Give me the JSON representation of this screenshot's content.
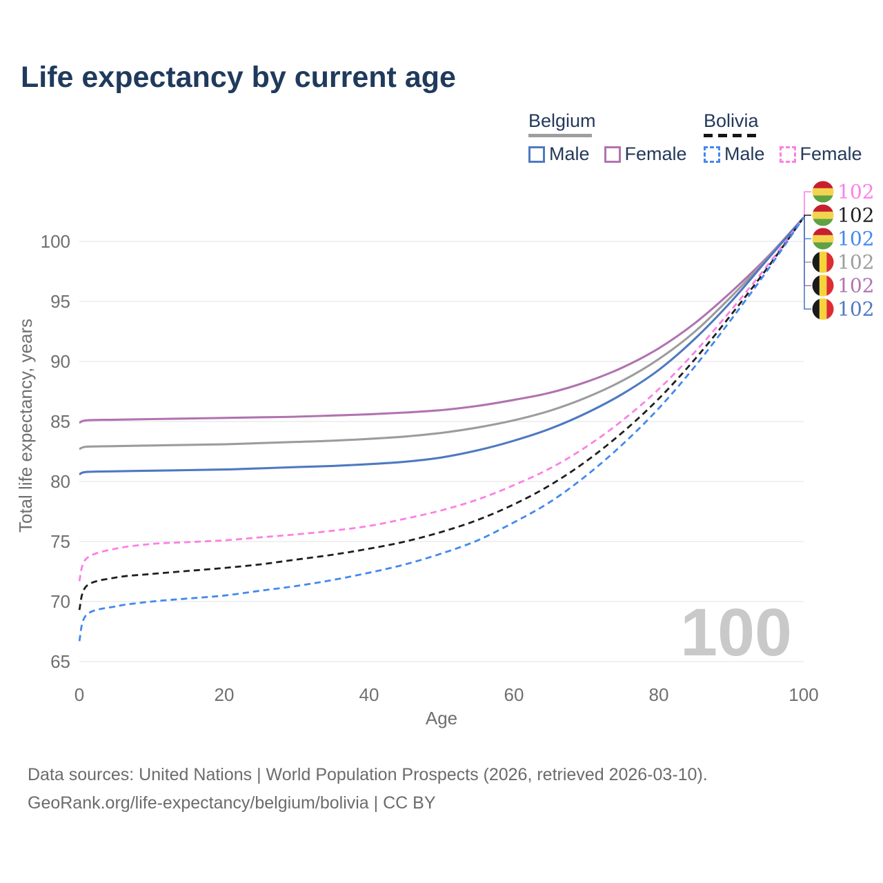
{
  "title": "Life expectancy by current age",
  "legend": {
    "groups": [
      {
        "label": "Belgium",
        "underline_style": "solid",
        "underline_color": "#9e9e9e",
        "items": [
          {
            "label": "Male",
            "color": "#4e79c1",
            "dashed": false
          },
          {
            "label": "Female",
            "color": "#b173af",
            "dashed": false
          }
        ]
      },
      {
        "label": "Bolivia",
        "underline_style": "dashed",
        "underline_color": "#151515",
        "items": [
          {
            "label": "Male",
            "color": "#4289ef",
            "dashed": true
          },
          {
            "label": "Female",
            "color": "#fb80e3",
            "dashed": true
          }
        ]
      }
    ]
  },
  "chart_data": {
    "type": "line",
    "title": "Life expectancy by current age",
    "xlabel": "Age",
    "ylabel": "Total life expectancy, years",
    "xlim": [
      0,
      100
    ],
    "ylim": [
      65,
      102
    ],
    "xticks": [
      0,
      20,
      40,
      60,
      80,
      100
    ],
    "yticks": [
      65,
      70,
      75,
      80,
      85,
      90,
      95,
      100
    ],
    "grid": "horizontal",
    "legend_position": "top-right",
    "x": [
      0,
      1,
      5,
      10,
      15,
      20,
      25,
      30,
      35,
      40,
      45,
      50,
      55,
      60,
      65,
      70,
      75,
      80,
      85,
      90,
      95,
      100
    ],
    "series": [
      {
        "name": "Belgium Female",
        "country": "Belgium",
        "sex": "female",
        "color": "#b173af",
        "dashed": false,
        "row": 4,
        "flag": "belgium",
        "end_label": "102",
        "values": [
          84.9,
          85.1,
          85.15,
          85.2,
          85.25,
          85.3,
          85.35,
          85.4,
          85.5,
          85.6,
          85.75,
          85.95,
          86.3,
          86.8,
          87.4,
          88.3,
          89.5,
          91.1,
          93.2,
          95.8,
          98.7,
          102
        ]
      },
      {
        "name": "Belgium Both sexes",
        "country": "Belgium",
        "sex": "both",
        "color": "#9c9c9c",
        "dashed": false,
        "row": 3,
        "flag": "belgium",
        "end_label": "102",
        "values": [
          82.7,
          82.9,
          82.95,
          83.0,
          83.05,
          83.1,
          83.2,
          83.3,
          83.4,
          83.55,
          83.75,
          84.05,
          84.5,
          85.1,
          85.9,
          87.0,
          88.4,
          90.2,
          92.5,
          95.4,
          98.6,
          102
        ]
      },
      {
        "name": "Belgium Male",
        "country": "Belgium",
        "sex": "male",
        "color": "#4e79c1",
        "dashed": false,
        "row": 5,
        "flag": "belgium",
        "end_label": "102",
        "values": [
          80.6,
          80.8,
          80.85,
          80.9,
          80.95,
          81.0,
          81.1,
          81.2,
          81.3,
          81.45,
          81.65,
          82.0,
          82.6,
          83.4,
          84.4,
          85.7,
          87.3,
          89.3,
          91.9,
          95.0,
          98.5,
          102
        ]
      },
      {
        "name": "Bolivia Female",
        "country": "Bolivia",
        "sex": "female",
        "color": "#fb80e3",
        "dashed": true,
        "row": 0,
        "flag": "bolivia",
        "end_label": "102",
        "values": [
          71.7,
          73.6,
          74.4,
          74.8,
          74.95,
          75.1,
          75.35,
          75.6,
          75.9,
          76.3,
          76.9,
          77.6,
          78.5,
          79.7,
          81.1,
          82.9,
          85.1,
          87.7,
          90.8,
          94.3,
          98.0,
          102
        ]
      },
      {
        "name": "Bolivia Both sexes",
        "country": "Bolivia",
        "sex": "both",
        "color": "#1f1f1f",
        "dashed": true,
        "row": 1,
        "flag": "bolivia",
        "end_label": "102",
        "values": [
          69.3,
          71.3,
          72.0,
          72.3,
          72.55,
          72.8,
          73.1,
          73.5,
          73.9,
          74.4,
          75.0,
          75.8,
          76.8,
          78.1,
          79.7,
          81.7,
          84.1,
          86.9,
          90.2,
          93.9,
          97.8,
          102
        ]
      },
      {
        "name": "Bolivia Male",
        "country": "Bolivia",
        "sex": "male",
        "color": "#4289ef",
        "dashed": true,
        "row": 2,
        "flag": "bolivia",
        "end_label": "102",
        "values": [
          66.7,
          68.9,
          69.6,
          70.0,
          70.25,
          70.5,
          70.9,
          71.3,
          71.8,
          72.4,
          73.1,
          74.0,
          75.1,
          76.6,
          78.3,
          80.5,
          83.1,
          86.1,
          89.6,
          93.5,
          97.6,
          102
        ]
      }
    ],
    "annotations": {
      "watermark": "100",
      "flag_colors": {
        "bolivia": [
          "#c81e2e",
          "#f4d44e",
          "#5ea243"
        ],
        "belgium": [
          "#1b1b1b",
          "#f6d33c",
          "#dd2c34"
        ]
      }
    }
  },
  "footer": {
    "line1": "Data sources: United Nations | World Population Prospects (2026, retrieved 2026-03-10).",
    "line2": "GeoRank.org/life-expectancy/belgium/bolivia | CC BY"
  }
}
